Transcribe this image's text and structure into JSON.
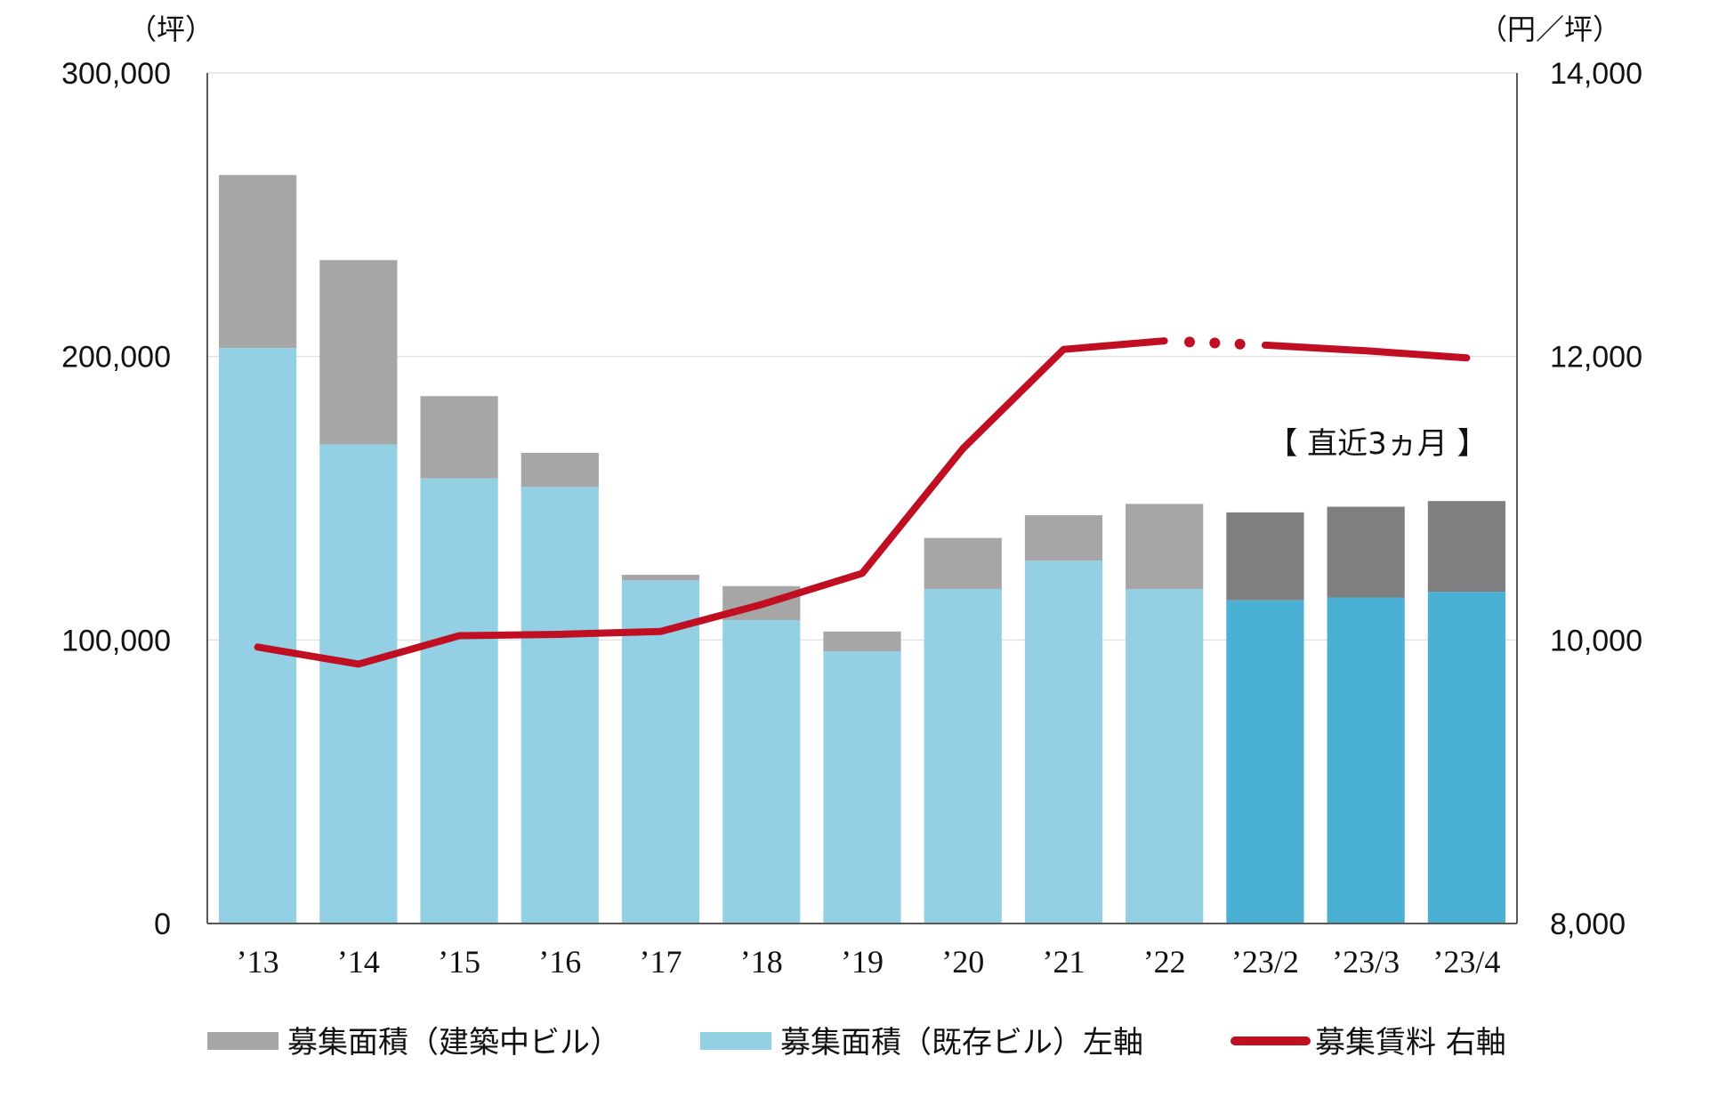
{
  "chart_data": {
    "type": "bar",
    "categories": [
      "’13",
      "’14",
      "’15",
      "’16",
      "’17",
      "’18",
      "’19",
      "’20",
      "’21",
      "’22",
      "’23/2",
      "’23/3",
      "’23/4"
    ],
    "series": [
      {
        "name": "募集面積（既存ビル）左軸",
        "axis": "left",
        "kind": "stacked-bar",
        "values": [
          203000,
          169000,
          157000,
          154000,
          121000,
          107000,
          96000,
          118000,
          128000,
          118000,
          114000,
          115000,
          117000
        ]
      },
      {
        "name": "募集面積（建築中ビル）",
        "axis": "left",
        "kind": "stacked-bar",
        "values": [
          61000,
          65000,
          29000,
          12000,
          2000,
          12000,
          7000,
          18000,
          16000,
          30000,
          31000,
          32000,
          32000
        ]
      },
      {
        "name": "募集賃料 右軸",
        "axis": "right",
        "kind": "line",
        "values": [
          9950,
          9830,
          10030,
          10040,
          10060,
          10250,
          10470,
          11350,
          12050,
          12110,
          12080,
          12040,
          11990
        ]
      }
    ],
    "y_left": {
      "unit": "（坪）",
      "ylim": [
        0,
        300000
      ],
      "ticks": [
        "0",
        "100,000",
        "200,000",
        "300,000"
      ]
    },
    "y_right": {
      "unit": "（円／坪）",
      "ylim": [
        8000,
        14000
      ],
      "ticks": [
        "8,000",
        "10,000",
        "12,000",
        "14,000"
      ]
    },
    "annotation": "【 直近3ヵ月 】",
    "recent_period_categories": [
      "’23/2",
      "’23/3",
      "’23/4"
    ],
    "grid": true,
    "legend_placement": "bottom",
    "legend": [
      {
        "label": "募集面積（建築中ビル）",
        "color": "#a6a6a6"
      },
      {
        "label": "募集面積（既存ビル）左軸",
        "color": "#93d0e3"
      },
      {
        "label": "募集賃料 右軸",
        "color": "#c00f23"
      }
    ],
    "colors": {
      "existing": "#93d0e3",
      "existing_recent": "#4ab0d4",
      "construction": "#a6a6a6",
      "construction_recent": "#7f7f7f",
      "rent_line": "#c00f23",
      "grid": "#e3e3e3",
      "axis": "#595959"
    }
  }
}
